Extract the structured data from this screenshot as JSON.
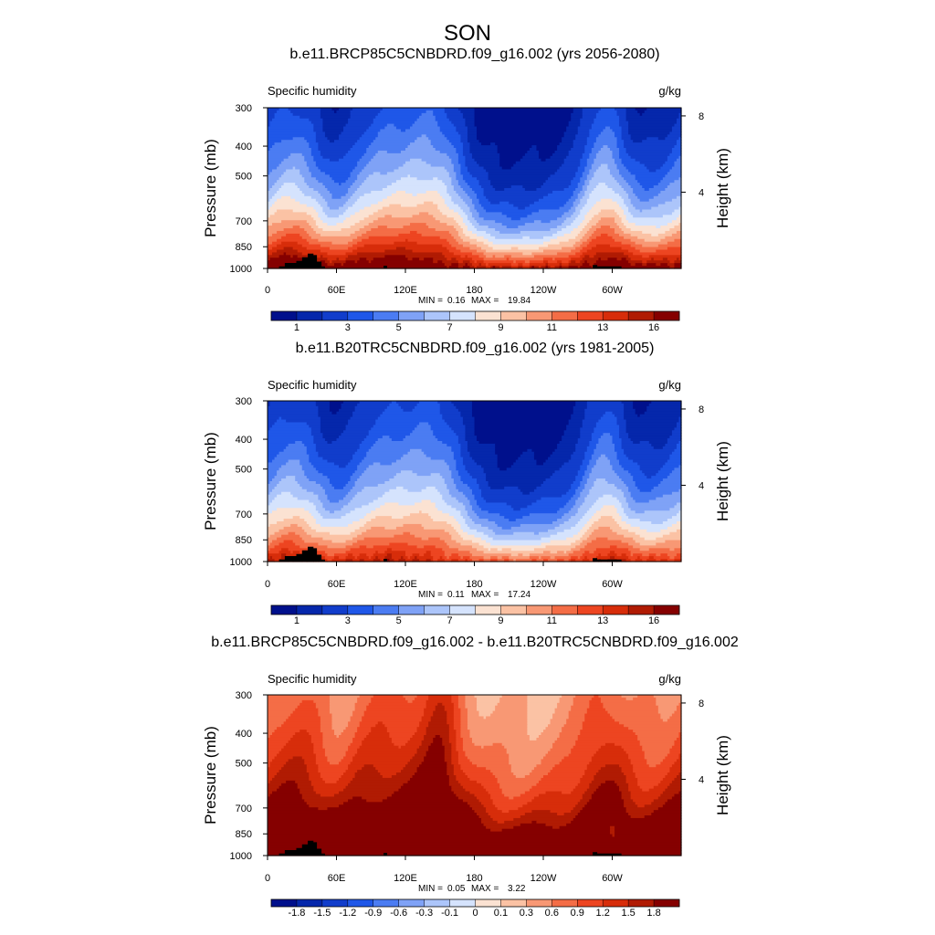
{
  "figure_title": "SON",
  "chart_data": [
    {
      "type": "heatmap",
      "title": "b.e11.BRCP85C5CNBDRD.f09_g16.002 (yrs 2056-2080)",
      "left_label": "Specific humidity",
      "right_label": "g/kg",
      "ylabel": "Pressure (mb)",
      "y2label": "Height (km)",
      "x_ticks": [
        "0",
        "60E",
        "120E",
        "180",
        "120W",
        "60W"
      ],
      "x_tick_lon": [
        0,
        60,
        120,
        180,
        240,
        300
      ],
      "y_ticks": [
        "300",
        "400",
        "500",
        "700",
        "850",
        "1000"
      ],
      "y_tick_p": [
        300,
        400,
        500,
        700,
        850,
        1000
      ],
      "y2_ticks": [
        "8",
        "4"
      ],
      "y2_tick_km": [
        8,
        4
      ],
      "min_label": "MIN =",
      "min_value": "0.16",
      "max_label": "MAX =",
      "max_value": "19.84",
      "colorbar_labels": [
        "1",
        "3",
        "5",
        "7",
        "9",
        "11",
        "13",
        "16"
      ],
      "colorbar_label_bins": [
        1,
        3,
        5,
        7,
        9,
        11,
        13,
        15
      ],
      "colors": [
        "#00108c",
        "#0527ab",
        "#113dcb",
        "#1f57e8",
        "#4b7cf2",
        "#7fa2f6",
        "#acc5fa",
        "#d5e3fd",
        "#fbe2d2",
        "#fbc2a4",
        "#f89874",
        "#f46d46",
        "#ed4521",
        "#d72d0a",
        "#b01b03",
        "#850000"
      ]
    },
    {
      "type": "heatmap",
      "title": "b.e11.B20TRC5CNBDRD.f09_g16.002 (yrs 1981-2005)",
      "left_label": "Specific humidity",
      "right_label": "g/kg",
      "ylabel": "Pressure (mb)",
      "y2label": "Height (km)",
      "x_ticks": [
        "0",
        "60E",
        "120E",
        "180",
        "120W",
        "60W"
      ],
      "x_tick_lon": [
        0,
        60,
        120,
        180,
        240,
        300
      ],
      "y_ticks": [
        "300",
        "400",
        "500",
        "700",
        "850",
        "1000"
      ],
      "y_tick_p": [
        300,
        400,
        500,
        700,
        850,
        1000
      ],
      "y2_ticks": [
        "8",
        "4"
      ],
      "y2_tick_km": [
        8,
        4
      ],
      "min_label": "MIN =",
      "min_value": "0.11",
      "max_label": "MAX =",
      "max_value": "17.24",
      "colorbar_labels": [
        "1",
        "3",
        "5",
        "7",
        "9",
        "11",
        "13",
        "16"
      ],
      "colorbar_label_bins": [
        1,
        3,
        5,
        7,
        9,
        11,
        13,
        15
      ],
      "colors": [
        "#00108c",
        "#0527ab",
        "#113dcb",
        "#1f57e8",
        "#4b7cf2",
        "#7fa2f6",
        "#acc5fa",
        "#d5e3fd",
        "#fbe2d2",
        "#fbc2a4",
        "#f89874",
        "#f46d46",
        "#ed4521",
        "#d72d0a",
        "#b01b03",
        "#850000"
      ]
    },
    {
      "type": "heatmap",
      "title": "b.e11.BRCP85C5CNBDRD.f09_g16.002 - b.e11.B20TRC5CNBDRD.f09_g16.002",
      "left_label": "Specific humidity",
      "right_label": "g/kg",
      "ylabel": "Pressure (mb)",
      "y2label": "Height (km)",
      "x_ticks": [
        "0",
        "60E",
        "120E",
        "180",
        "120W",
        "60W"
      ],
      "x_tick_lon": [
        0,
        60,
        120,
        180,
        240,
        300
      ],
      "y_ticks": [
        "300",
        "400",
        "500",
        "700",
        "850",
        "1000"
      ],
      "y_tick_p": [
        300,
        400,
        500,
        700,
        850,
        1000
      ],
      "y2_ticks": [
        "8",
        "4"
      ],
      "y2_tick_km": [
        8,
        4
      ],
      "min_label": "MIN =",
      "min_value": "0.05",
      "max_label": "MAX =",
      "max_value": "3.22",
      "colorbar_labels": [
        "-1.8",
        "-1.5",
        "-1.2",
        "-0.9",
        "-0.6",
        "-0.3",
        "-0.1",
        "0",
        "0.1",
        "0.3",
        "0.6",
        "0.9",
        "1.2",
        "1.5",
        "1.8"
      ],
      "colorbar_label_bins": [
        1,
        2,
        3,
        4,
        5,
        6,
        7,
        8,
        9,
        10,
        11,
        12,
        13,
        14,
        15
      ],
      "colors": [
        "#00108c",
        "#0527ab",
        "#113dcb",
        "#1f57e8",
        "#4b7cf2",
        "#7fa2f6",
        "#acc5fa",
        "#d5e3fd",
        "#fbe2d2",
        "#fbc2a4",
        "#f89874",
        "#f46d46",
        "#ed4521",
        "#d72d0a",
        "#b01b03",
        "#850000"
      ]
    }
  ]
}
